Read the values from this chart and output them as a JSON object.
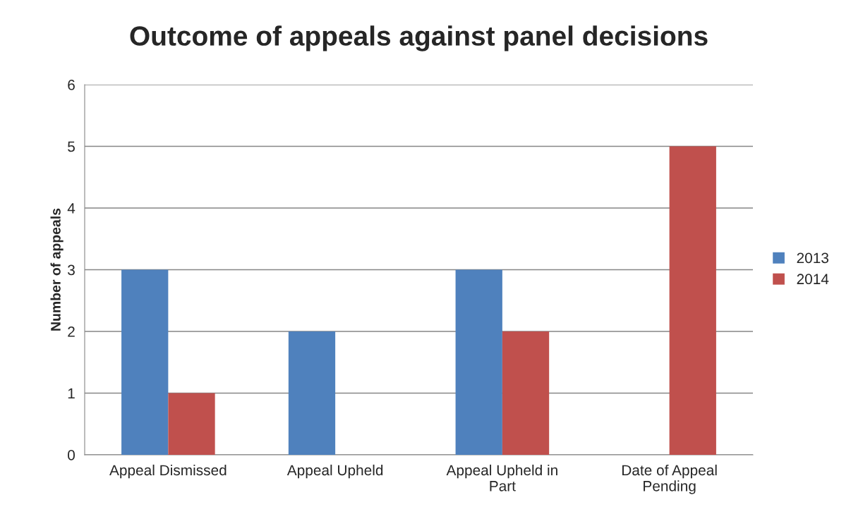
{
  "chart_data": {
    "type": "bar",
    "title": "Outcome of appeals against panel decisions",
    "ylabel": "Number of appeals",
    "categories": [
      "Appeal Dismissed",
      "Appeal Upheld",
      "Appeal Upheld in Part",
      "Date of Appeal Pending"
    ],
    "series": [
      {
        "name": "2013",
        "color": "#4f81bd",
        "values": [
          3,
          2,
          3,
          null
        ]
      },
      {
        "name": "2014",
        "color": "#c0504d",
        "values": [
          1,
          null,
          2,
          5
        ]
      }
    ],
    "ylim": [
      0,
      6
    ],
    "yticks": [
      0,
      1,
      2,
      3,
      4,
      5,
      6
    ],
    "grid": "y",
    "legend": "right"
  }
}
